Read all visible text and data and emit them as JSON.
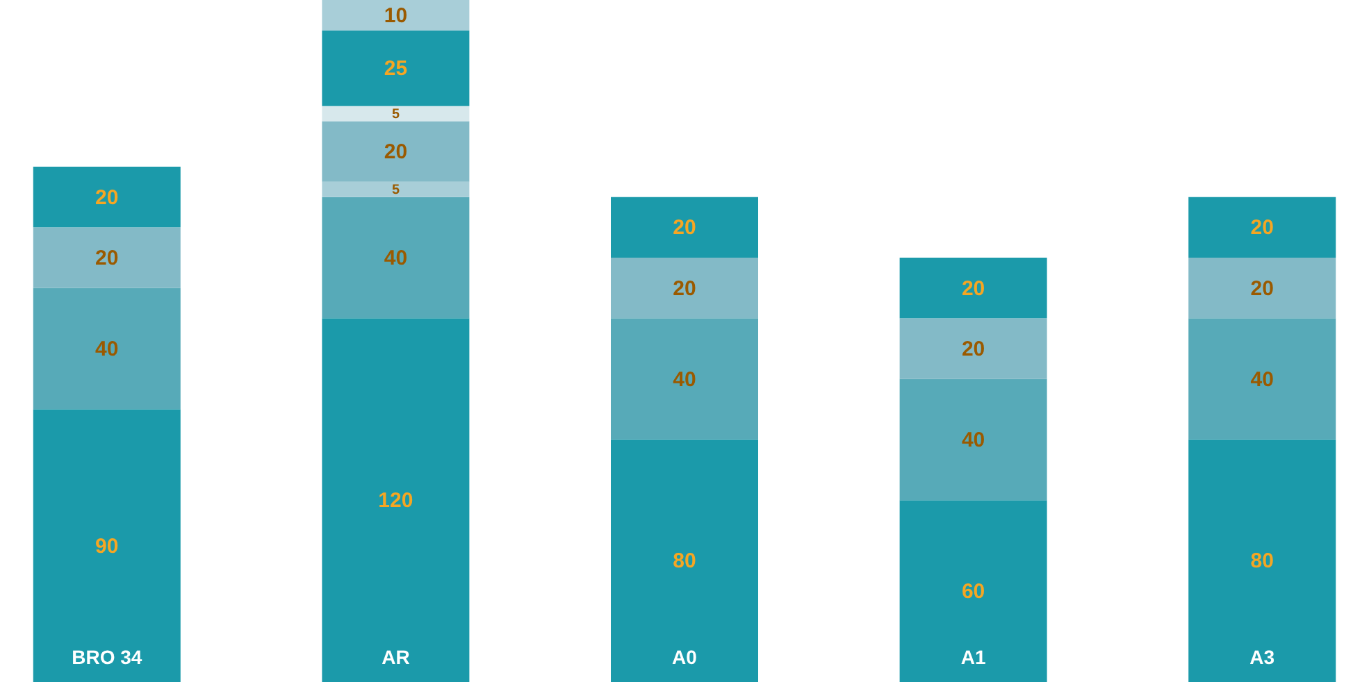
{
  "chart_data": {
    "type": "bar",
    "stacked": true,
    "data_labels": true,
    "tick_labels": "x",
    "grid": false,
    "legend": false,
    "categories": [
      "BRO 34",
      "AR",
      "A0",
      "A1",
      "A3"
    ],
    "series": [
      {
        "color": "#1b9aaa",
        "values": [
          90,
          120,
          80,
          60,
          80
        ]
      },
      {
        "color": "#57aab8",
        "values": [
          40,
          40,
          40,
          40,
          40
        ]
      },
      {
        "color": "#a8ced8",
        "values": [
          null,
          5,
          null,
          null,
          null
        ]
      },
      {
        "color": "#83bac7",
        "values": [
          20,
          20,
          20,
          20,
          20
        ]
      },
      {
        "color": "#d7e8ec",
        "values": [
          null,
          5,
          null,
          null,
          null
        ]
      },
      {
        "color": "#1b9aaa",
        "values": [
          20,
          25,
          20,
          20,
          20
        ]
      },
      {
        "color": "#a8ced8",
        "values": [
          null,
          10,
          null,
          null,
          null
        ]
      }
    ]
  }
}
